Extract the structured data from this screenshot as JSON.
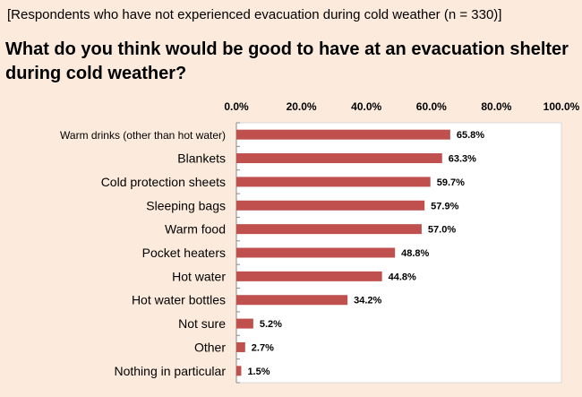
{
  "header": {
    "subtitle": "[Respondents who have not experienced evacuation during cold weather (n = 330)]",
    "title": "What do you think would be good to have at an evacuation shelter during cold weather?"
  },
  "chart_data": {
    "type": "bar",
    "orientation": "horizontal",
    "subtitle": "[Respondents who have not experienced evacuation during cold weather (n = 330)]",
    "title": "What do you think would be good to have at an evacuation shelter during cold weather?",
    "categories": [
      "Warm drinks (other than hot water)",
      "Blankets",
      "Cold protection sheets",
      "Sleeping bags",
      "Warm food",
      "Pocket heaters",
      "Hot water",
      "Hot water bottles",
      "Not sure",
      "Other",
      "Nothing in particular"
    ],
    "values": [
      65.8,
      63.3,
      59.7,
      57.9,
      57.0,
      48.8,
      44.8,
      34.2,
      5.2,
      2.7,
      1.5
    ],
    "value_labels": [
      "65.8%",
      "63.3%",
      "59.7%",
      "57.9%",
      "57.0%",
      "48.8%",
      "44.8%",
      "34.2%",
      "5.2%",
      "2.7%",
      "1.5%"
    ],
    "xlim": [
      0,
      100
    ],
    "x_ticks": [
      0,
      20,
      40,
      60,
      80,
      100
    ],
    "x_tick_labels": [
      "0.0%",
      "20.0%",
      "40.0%",
      "60.0%",
      "80.0%",
      "100.0%"
    ],
    "axis_position": "top",
    "grid": false,
    "colors": {
      "bar": "#c0504d",
      "plot_background": "#ffffff",
      "page_background": "#fcebdc"
    }
  }
}
